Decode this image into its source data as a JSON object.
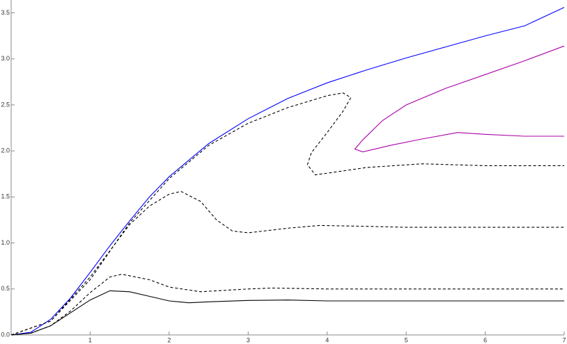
{
  "chart_data": {
    "type": "line",
    "xlim": [
      0,
      7
    ],
    "ylim": [
      0,
      3.64
    ],
    "xticks": [
      1,
      2,
      3,
      4,
      5,
      6,
      7
    ],
    "yticks": [
      {
        "value": 0,
        "label": "0.0"
      },
      0.5,
      {
        "value": 1,
        "label": "1.0"
      },
      1.5,
      {
        "value": 2,
        "label": "2.0"
      },
      2.5,
      {
        "value": 3,
        "label": "3.0"
      },
      3.5
    ],
    "grid": false,
    "series": [
      {
        "color": "#0000ff",
        "dash": false,
        "x": [
          0,
          0.25,
          0.5,
          0.75,
          1,
          1.25,
          1.5,
          1.75,
          2,
          2.5,
          3,
          3.5,
          4,
          4.5,
          5,
          5.5,
          6,
          6.5,
          7
        ],
        "values": [
          0,
          0.03,
          0.17,
          0.4,
          0.68,
          0.97,
          1.24,
          1.5,
          1.72,
          2.08,
          2.35,
          2.57,
          2.74,
          2.88,
          3.01,
          3.13,
          3.25,
          3.36,
          3.56
        ]
      },
      {
        "color": "#aa00aa",
        "dash": false,
        "x": [
          7,
          6.5,
          6,
          5.5,
          5,
          4.7,
          4.45,
          4.35,
          4.45,
          4.8,
          5.2,
          5.65,
          6,
          6.5,
          7
        ],
        "values": [
          3.14,
          2.98,
          2.83,
          2.68,
          2.5,
          2.33,
          2.12,
          2.02,
          1.99,
          2.06,
          2.13,
          2.2,
          2.18,
          2.16,
          2.16
        ]
      },
      {
        "color": "#000000",
        "dash": true,
        "x": [
          0,
          0.5,
          1,
          1.5,
          2,
          2.5,
          3,
          3.5,
          4,
          4.2,
          4.3,
          4.2,
          4.0,
          3.8,
          3.75,
          3.85,
          4.1,
          4.5,
          5.2,
          6,
          7
        ],
        "values": [
          0,
          0.15,
          0.6,
          1.22,
          1.7,
          2.06,
          2.3,
          2.47,
          2.6,
          2.63,
          2.58,
          2.43,
          2.2,
          1.98,
          1.85,
          1.74,
          1.77,
          1.82,
          1.86,
          1.84,
          1.84
        ]
      },
      {
        "color": "#000000",
        "dash": true,
        "x": [
          0,
          0.5,
          1,
          1.5,
          1.75,
          2,
          2.15,
          2.4,
          2.6,
          2.8,
          3,
          3.5,
          3.9,
          4.5,
          5,
          7
        ],
        "values": [
          0,
          0.15,
          0.63,
          1.2,
          1.4,
          1.53,
          1.56,
          1.45,
          1.25,
          1.13,
          1.11,
          1.16,
          1.19,
          1.18,
          1.17,
          1.17
        ]
      },
      {
        "color": "#000000",
        "dash": true,
        "x": [
          0,
          0.25,
          0.5,
          0.75,
          1,
          1.25,
          1.4,
          1.75,
          2,
          2.4,
          3,
          3.3,
          4,
          5,
          7
        ],
        "values": [
          0,
          0.02,
          0.1,
          0.26,
          0.46,
          0.63,
          0.66,
          0.6,
          0.52,
          0.47,
          0.5,
          0.51,
          0.5,
          0.5,
          0.5
        ]
      },
      {
        "color": "#000000",
        "dash": false,
        "x": [
          0,
          0.25,
          0.5,
          0.75,
          1,
          1.25,
          1.5,
          1.75,
          2,
          2.25,
          2.5,
          3,
          3.5,
          4,
          5,
          6,
          7
        ],
        "values": [
          0,
          0.02,
          0.1,
          0.24,
          0.38,
          0.48,
          0.47,
          0.42,
          0.37,
          0.35,
          0.36,
          0.375,
          0.38,
          0.37,
          0.37,
          0.37,
          0.37
        ]
      }
    ]
  }
}
